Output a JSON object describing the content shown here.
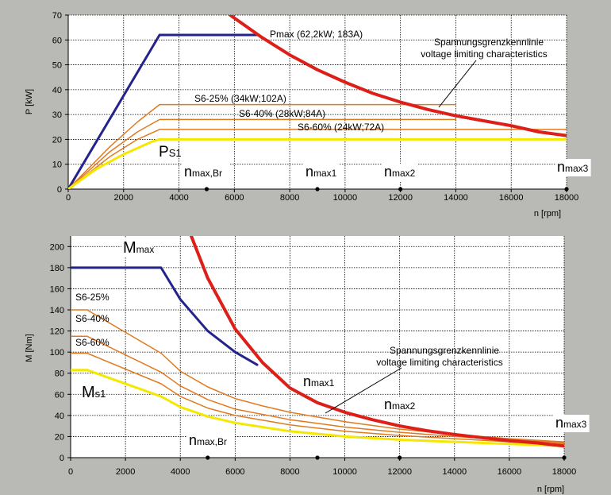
{
  "chart_data": [
    {
      "type": "line",
      "ylabel": "P [kW]",
      "xlabel": "n [rpm]",
      "xlim": [
        0,
        18000
      ],
      "ylim": [
        0,
        70
      ],
      "xticks": [
        0,
        2000,
        4000,
        6000,
        8000,
        10000,
        12000,
        14000,
        16000,
        18000
      ],
      "yticks": [
        0,
        10,
        20,
        30,
        40,
        50,
        60,
        70
      ],
      "grid": true,
      "series": [
        {
          "key": "pmax",
          "color": "#24238c",
          "width": 3,
          "points": [
            [
              0,
              0
            ],
            [
              3300,
              62
            ],
            [
              6800,
              62
            ]
          ]
        },
        {
          "key": "s6_25",
          "color": "#e07a20",
          "width": 1.5,
          "points": [
            [
              0,
              0
            ],
            [
              1500,
              17
            ],
            [
              2500,
              27
            ],
            [
              3300,
              34
            ],
            [
              14000,
              34
            ]
          ]
        },
        {
          "key": "s6_40",
          "color": "#e07a20",
          "width": 1.5,
          "points": [
            [
              0,
              0
            ],
            [
              1500,
              15
            ],
            [
              2500,
              23
            ],
            [
              3300,
              28
            ],
            [
              14000,
              28
            ]
          ]
        },
        {
          "key": "s6_60",
          "color": "#e07a20",
          "width": 1.5,
          "points": [
            [
              0,
              0
            ],
            [
              1500,
              13
            ],
            [
              2500,
              20
            ],
            [
              3300,
              24
            ],
            [
              18000,
              24
            ]
          ]
        },
        {
          "key": "ps1",
          "color": "#f5e800",
          "width": 3,
          "points": [
            [
              0,
              0
            ],
            [
              1000,
              8
            ],
            [
              2000,
              14
            ],
            [
              3000,
              19
            ],
            [
              3300,
              20
            ],
            [
              18000,
              20
            ]
          ]
        },
        {
          "key": "voltage_limit",
          "color": "#dd1f1a",
          "width": 4,
          "points": [
            [
              5850,
              70
            ],
            [
              7000,
              61
            ],
            [
              8000,
              54
            ],
            [
              9000,
              48
            ],
            [
              10000,
              43
            ],
            [
              11000,
              38.5
            ],
            [
              12000,
              35
            ],
            [
              13000,
              32
            ],
            [
              14000,
              29.5
            ],
            [
              15000,
              27.5
            ],
            [
              16000,
              25.5
            ],
            [
              17000,
              23
            ],
            [
              18000,
              21.5
            ]
          ]
        }
      ],
      "labels": {
        "pmax": "Pmax (62,2kW; 183A)",
        "s6_25": "S6-25% (34kW;102A)",
        "s6_40": "S6-40% (28kW;84A)",
        "s6_60": "S6-60% (24kW;72A)",
        "ps1_main": "P",
        "ps1_sub": "S1",
        "voltage_de": "Spannungsgrenzkennlinie",
        "voltage_en": "voltage limiting characteristics"
      },
      "speed_markers": [
        {
          "x": 5000,
          "main": "n",
          "sub": "max,Br"
        },
        {
          "x": 9000,
          "main": "n",
          "sub": "max1"
        },
        {
          "x": 12000,
          "main": "n",
          "sub": "max2"
        },
        {
          "x": 18000,
          "main": "n",
          "sub": "max3"
        }
      ]
    },
    {
      "type": "line",
      "ylabel": "M [Nm]",
      "xlabel": "n [rpm]",
      "xlim": [
        0,
        18000
      ],
      "ylim": [
        0,
        210
      ],
      "xticks": [
        0,
        2000,
        4000,
        6000,
        8000,
        10000,
        12000,
        14000,
        16000,
        18000
      ],
      "yticks": [
        0,
        20,
        40,
        60,
        80,
        100,
        120,
        140,
        160,
        180,
        200
      ],
      "grid": true,
      "series": [
        {
          "key": "mmax",
          "color": "#24238c",
          "width": 3,
          "points": [
            [
              0,
              180
            ],
            [
              3300,
              180
            ],
            [
              4000,
              150
            ],
            [
              5000,
              120
            ],
            [
              6000,
              100
            ],
            [
              6800,
              88
            ]
          ]
        },
        {
          "key": "s6_25",
          "color": "#e07a20",
          "width": 1.5,
          "points": [
            [
              0,
              140
            ],
            [
              600,
              140
            ],
            [
              3300,
              99
            ],
            [
              4000,
              82
            ],
            [
              5000,
              67
            ],
            [
              6000,
              56
            ],
            [
              7000,
              49
            ],
            [
              8000,
              43
            ],
            [
              10000,
              34
            ],
            [
              12000,
              27
            ],
            [
              14000,
              22
            ],
            [
              16000,
              18
            ],
            [
              18000,
              15
            ]
          ]
        },
        {
          "key": "s6_40",
          "color": "#e07a20",
          "width": 1.5,
          "points": [
            [
              0,
              115
            ],
            [
              600,
              115
            ],
            [
              3300,
              81
            ],
            [
              4000,
              68
            ],
            [
              5000,
              55
            ],
            [
              6000,
              46
            ],
            [
              8000,
              36
            ],
            [
              10000,
              29
            ],
            [
              12000,
              24
            ],
            [
              14000,
              20
            ],
            [
              16000,
              17
            ],
            [
              18000,
              14
            ]
          ]
        },
        {
          "key": "s6_60",
          "color": "#e07a20",
          "width": 1.5,
          "points": [
            [
              0,
              99
            ],
            [
              600,
              99
            ],
            [
              3300,
              70
            ],
            [
              4000,
              58
            ],
            [
              5000,
              47
            ],
            [
              6000,
              40
            ],
            [
              8000,
              31
            ],
            [
              10000,
              25
            ],
            [
              12000,
              21
            ],
            [
              14000,
              18
            ],
            [
              16000,
              15
            ],
            [
              18000,
              13
            ]
          ]
        },
        {
          "key": "ms1",
          "color": "#f5e800",
          "width": 3,
          "points": [
            [
              0,
              83
            ],
            [
              600,
              83
            ],
            [
              3300,
              58
            ],
            [
              4000,
              48
            ],
            [
              5000,
              39
            ],
            [
              6000,
              33
            ],
            [
              8000,
              25
            ],
            [
              10000,
              20
            ],
            [
              12000,
              17
            ],
            [
              14000,
              15
            ],
            [
              16000,
              13
            ],
            [
              18000,
              11
            ]
          ]
        },
        {
          "key": "voltage_limit",
          "color": "#dd1f1a",
          "width": 4,
          "points": [
            [
              4400,
              210
            ],
            [
              5000,
              170
            ],
            [
              6000,
              122
            ],
            [
              7000,
              90
            ],
            [
              8000,
              66
            ],
            [
              9000,
              52
            ],
            [
              10000,
              43
            ],
            [
              11000,
              36
            ],
            [
              12000,
              30
            ],
            [
              13000,
              25.5
            ],
            [
              14000,
              22
            ],
            [
              15000,
              19
            ],
            [
              16000,
              16
            ],
            [
              17000,
              14
            ],
            [
              18000,
              11
            ]
          ]
        }
      ],
      "labels": {
        "mmax_main": "M",
        "mmax_sub": "max",
        "s6_25": "S6-25%",
        "s6_40": "S6-40%",
        "s6_60": "S6-60%",
        "ms1_main": "M",
        "ms1_sub": "s1",
        "voltage_de": "Spannungsgrenzkennlinie",
        "voltage_en": "voltage limiting characteristics"
      },
      "speed_markers": [
        {
          "x": 5000,
          "main": "n",
          "sub": "max,Br"
        },
        {
          "x": 9000,
          "main": "n",
          "sub": "max1"
        },
        {
          "x": 12000,
          "main": "n",
          "sub": "max2"
        },
        {
          "x": 18000,
          "main": "n",
          "sub": "max3"
        }
      ]
    }
  ]
}
